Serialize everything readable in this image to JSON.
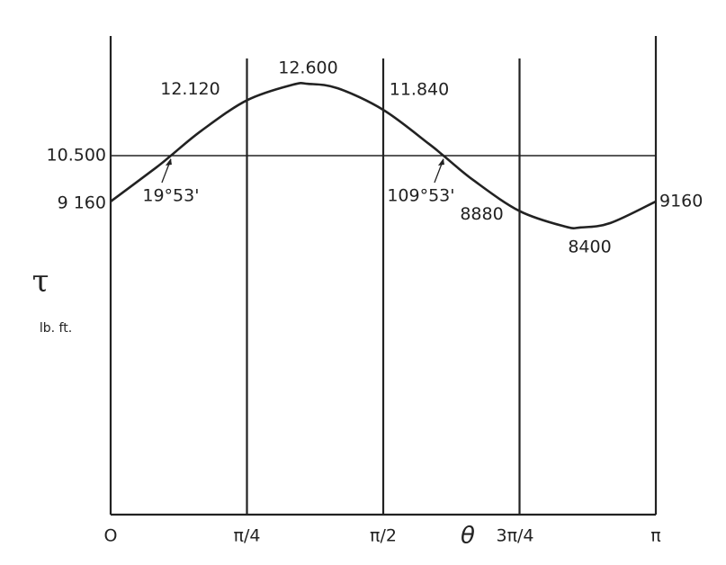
{
  "chart_data": {
    "type": "line",
    "y_label": "τ",
    "y_unit": "lb. ft.",
    "x_label": "θ",
    "x": [
      0,
      15,
      19.88,
      30,
      45,
      60,
      65.2,
      75,
      90,
      105,
      109.88,
      120,
      135,
      150,
      155.2,
      165,
      180
    ],
    "values": [
      9160,
      10150,
      10500,
      11233,
      12120,
      12573,
      12600,
      12470,
      11840,
      10850,
      10500,
      9767,
      8880,
      8427,
      8400,
      8530,
      9160
    ],
    "value_labels": [
      "9 160",
      null,
      null,
      null,
      "12.120",
      null,
      "12.600",
      null,
      "11.840",
      null,
      null,
      null,
      "8880",
      null,
      "8400",
      null,
      "9160"
    ],
    "reference_line": {
      "value": 10500,
      "label": "10.500"
    },
    "annotations": [
      {
        "text": "19°53'",
        "x": 19.88
      },
      {
        "text": "109°53'",
        "x": 109.88
      }
    ],
    "color": "#222222",
    "xlim": [
      0,
      180
    ],
    "ylim": [
      0,
      14000
    ],
    "xticks": [
      {
        "value": 0,
        "label": "O"
      },
      {
        "value": 45,
        "label": "π/4"
      },
      {
        "value": 90,
        "label": "π/2"
      },
      {
        "value": 135,
        "label": "3π/4"
      },
      {
        "value": 180,
        "label": "π"
      }
    ],
    "grid": true
  }
}
